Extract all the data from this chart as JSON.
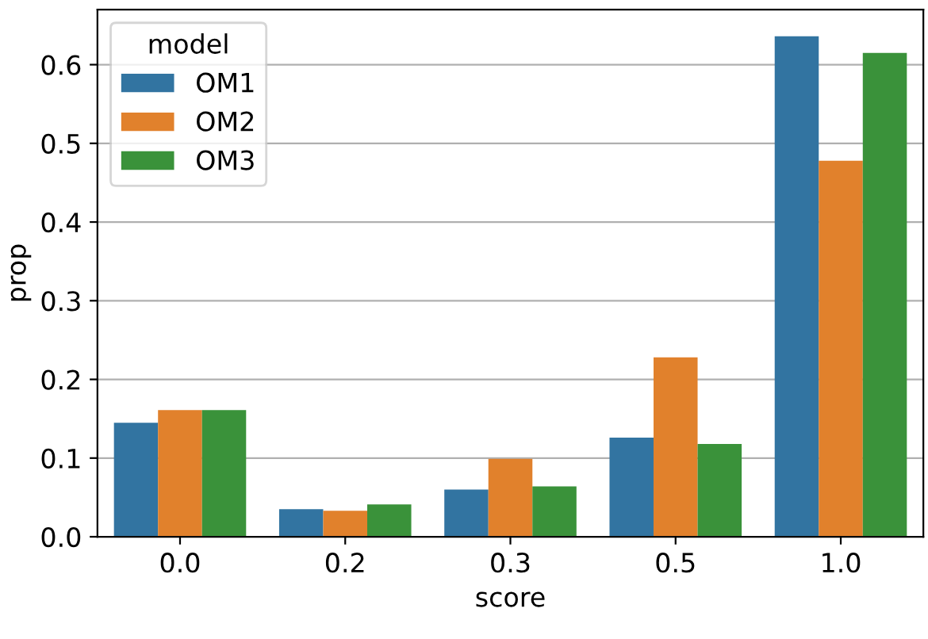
{
  "chart_data": {
    "type": "bar",
    "xlabel": "score",
    "ylabel": "prop",
    "legend_title": "model",
    "categories": [
      "0.0",
      "0.2",
      "0.3",
      "0.5",
      "1.0"
    ],
    "series": [
      {
        "name": "OM1",
        "color": "#3274a1",
        "values": [
          0.145,
          0.035,
          0.06,
          0.126,
          0.636
        ]
      },
      {
        "name": "OM2",
        "color": "#e1812c",
        "values": [
          0.161,
          0.033,
          0.099,
          0.228,
          0.478
        ]
      },
      {
        "name": "OM3",
        "color": "#3a923a",
        "values": [
          0.161,
          0.041,
          0.064,
          0.118,
          0.615
        ]
      }
    ],
    "ylim": [
      0,
      0.67
    ],
    "yticks": [
      {
        "value": 0,
        "label": "0.0"
      },
      0.1,
      0.2,
      0.3,
      0.4,
      0.5,
      0.6
    ],
    "grid": "y",
    "legend": "top left"
  }
}
